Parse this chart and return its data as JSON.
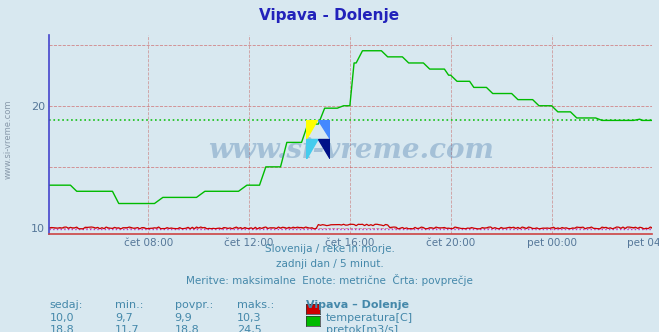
{
  "title": "Vipava - Dolenje",
  "title_color": "#2222bb",
  "background_color": "#d8e8f0",
  "plot_bg_color": "#d8e8f0",
  "grid_color_v": "#cc8888",
  "grid_color_h": "#cc4444",
  "xlabel": "",
  "ylabel": "",
  "ylim_min": 9.5,
  "ylim_max": 25.8,
  "xlim_min": 0,
  "xlim_max": 287,
  "x_tick_labels": [
    "čet 08:00",
    "čet 12:00",
    "čet 16:00",
    "čet 20:00",
    "pet 00:00",
    "pet 04:00"
  ],
  "x_tick_positions": [
    47,
    95,
    143,
    191,
    239,
    287
  ],
  "y_ticks": [
    10,
    20
  ],
  "avg_temp": 9.9,
  "avg_flow": 18.8,
  "temp_color": "#cc0000",
  "flow_color": "#00bb00",
  "avg_line_color_temp": "#bb00bb",
  "avg_line_color_flow": "#00bb00",
  "watermark_text": "www.si-vreme.com",
  "footer_line1": "Slovenija / reke in morje.",
  "footer_line2": "zadnji dan / 5 minut.",
  "footer_line3": "Meritve: maksimalne  Enote: metrične  Črta: povprečje",
  "footer_color": "#4488aa",
  "table_headers": [
    "sedaj:",
    "min.:",
    "povpr.:",
    "maks.:",
    "Vipava – Dolenje"
  ],
  "table_row1_vals": [
    "10,0",
    "9,7",
    "9,9",
    "10,3"
  ],
  "table_row1_label": "temperatura[C]",
  "table_row2_vals": [
    "18,8",
    "11,7",
    "18,8",
    "24,5"
  ],
  "table_row2_label": "pretok[m3/s]",
  "table_color": "#4488aa",
  "left_label": "www.si-vreme.com",
  "left_label_color": "#8899aa",
  "left_spine_color": "#4444cc",
  "bottom_spine_color": "#cc4444"
}
